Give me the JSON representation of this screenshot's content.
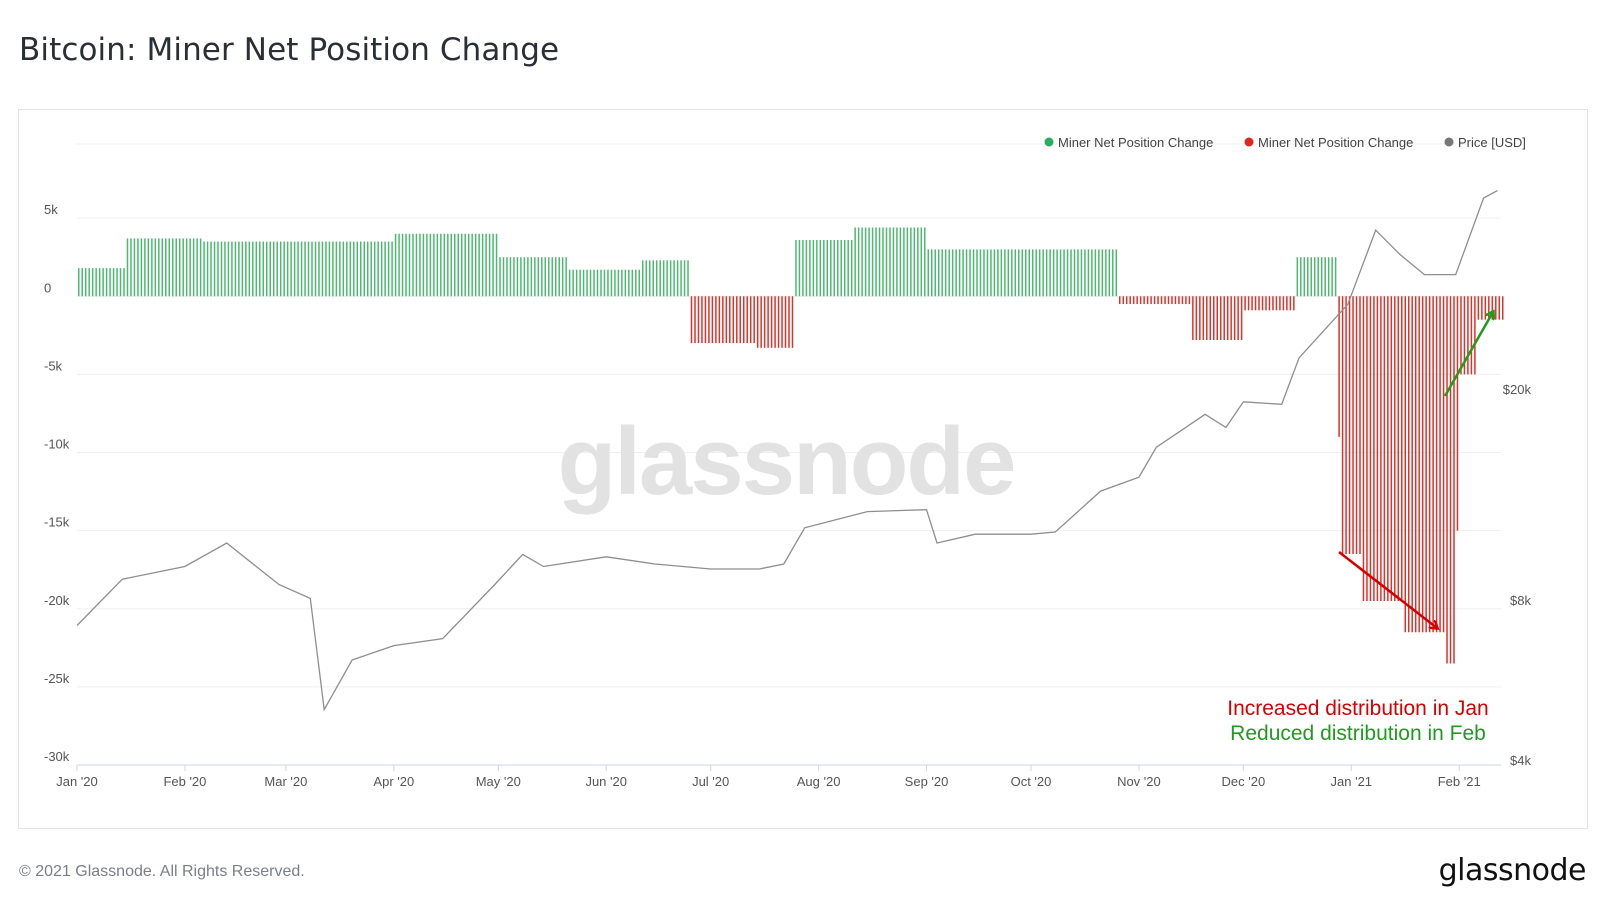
{
  "page": {
    "title": "Bitcoin: Miner Net Position Change",
    "copyright": "© 2021 Glassnode. All Rights Reserved.",
    "logo": "glassnode"
  },
  "chart_data": {
    "type": "bar",
    "title": "Bitcoin: Miner Net Position Change",
    "watermark": "glassnode",
    "legend": {
      "placement": "top-right",
      "entries": [
        {
          "label": "Miner Net Position Change",
          "color": "#27ae60"
        },
        {
          "label": "Miner Net Position Change",
          "color": "#e0271c"
        },
        {
          "label": "Price [USD]",
          "color": "#777777"
        }
      ]
    },
    "colors": {
      "positive": "#4db871",
      "negative": "#d9342b",
      "price": "#8e8e8e",
      "grid": "#efefef"
    },
    "x_range": [
      "2020-01-01",
      "2021-02-13"
    ],
    "x_ticks": [
      {
        "date": "2020-01-01",
        "label": "Jan '20"
      },
      {
        "date": "2020-02-01",
        "label": "Feb '20"
      },
      {
        "date": "2020-03-01",
        "label": "Mar '20"
      },
      {
        "date": "2020-04-01",
        "label": "Apr '20"
      },
      {
        "date": "2020-05-01",
        "label": "May '20"
      },
      {
        "date": "2020-06-01",
        "label": "Jun '20"
      },
      {
        "date": "2020-07-01",
        "label": "Jul '20"
      },
      {
        "date": "2020-08-01",
        "label": "Aug '20"
      },
      {
        "date": "2020-09-01",
        "label": "Sep '20"
      },
      {
        "date": "2020-10-01",
        "label": "Oct '20"
      },
      {
        "date": "2020-11-01",
        "label": "Nov '20"
      },
      {
        "date": "2020-12-01",
        "label": "Dec '20"
      },
      {
        "date": "2021-01-01",
        "label": "Jan '21"
      },
      {
        "date": "2021-02-01",
        "label": "Feb '21"
      }
    ],
    "y_left": {
      "range": [
        -30000,
        10000
      ],
      "ticks": [
        {
          "value": 5000,
          "label": "5k"
        },
        {
          "value": 0,
          "label": "0"
        },
        {
          "value": -5000,
          "label": "-5k"
        },
        {
          "value": -10000,
          "label": "-10k"
        },
        {
          "value": -15000,
          "label": "-15k"
        },
        {
          "value": -20000,
          "label": "-20k"
        },
        {
          "value": -25000,
          "label": "-25k"
        },
        {
          "value": -30000,
          "label": "-30k"
        }
      ]
    },
    "y_right": {
      "scale": "log",
      "ticks": [
        {
          "value": 20000,
          "label": "$20k"
        },
        {
          "value": 8000,
          "label": "$8k"
        },
        {
          "value": 4000,
          "label": "$4k"
        }
      ]
    },
    "net_position_segments": [
      {
        "start": "2020-01-01",
        "end": "2020-01-14",
        "value": 1800
      },
      {
        "start": "2020-01-15",
        "end": "2020-02-05",
        "value": 3700
      },
      {
        "start": "2020-02-06",
        "end": "2020-03-31",
        "value": 3500
      },
      {
        "start": "2020-04-01",
        "end": "2020-04-30",
        "value": 4000
      },
      {
        "start": "2020-05-01",
        "end": "2020-05-20",
        "value": 2500
      },
      {
        "start": "2020-05-21",
        "end": "2020-06-10",
        "value": 1700
      },
      {
        "start": "2020-06-11",
        "end": "2020-06-24",
        "value": 2300
      },
      {
        "start": "2020-06-25",
        "end": "2020-07-13",
        "value": -3000
      },
      {
        "start": "2020-07-14",
        "end": "2020-07-24",
        "value": -3300
      },
      {
        "start": "2020-07-25",
        "end": "2020-08-10",
        "value": 3600
      },
      {
        "start": "2020-08-11",
        "end": "2020-08-31",
        "value": 4400
      },
      {
        "start": "2020-09-01",
        "end": "2020-10-25",
        "value": 3000
      },
      {
        "start": "2020-10-26",
        "end": "2020-11-15",
        "value": -500
      },
      {
        "start": "2020-11-16",
        "end": "2020-11-30",
        "value": -2800
      },
      {
        "start": "2020-12-01",
        "end": "2020-12-15",
        "value": -900
      },
      {
        "start": "2020-12-16",
        "end": "2020-12-27",
        "value": 2500
      },
      {
        "start": "2020-12-28",
        "end": "2020-12-28",
        "value": -9000
      },
      {
        "start": "2020-12-29",
        "end": "2021-01-03",
        "value": -16500
      },
      {
        "start": "2021-01-04",
        "end": "2021-01-15",
        "value": -19500
      },
      {
        "start": "2021-01-16",
        "end": "2021-01-27",
        "value": -21500
      },
      {
        "start": "2021-01-28",
        "end": "2021-01-30",
        "value": -23500
      },
      {
        "start": "2021-01-31",
        "end": "2021-01-31",
        "value": -15000
      },
      {
        "start": "2021-02-01",
        "end": "2021-02-05",
        "value": -5000
      },
      {
        "start": "2021-02-06",
        "end": "2021-02-13",
        "value": -1500
      }
    ],
    "price_usd": [
      {
        "date": "2020-01-01",
        "value": 7200
      },
      {
        "date": "2020-01-14",
        "value": 8800
      },
      {
        "date": "2020-02-01",
        "value": 9300
      },
      {
        "date": "2020-02-13",
        "value": 10300
      },
      {
        "date": "2020-02-28",
        "value": 8600
      },
      {
        "date": "2020-03-08",
        "value": 8100
      },
      {
        "date": "2020-03-12",
        "value": 5000
      },
      {
        "date": "2020-03-20",
        "value": 6200
      },
      {
        "date": "2020-04-01",
        "value": 6600
      },
      {
        "date": "2020-04-15",
        "value": 6800
      },
      {
        "date": "2020-04-30",
        "value": 8600
      },
      {
        "date": "2020-05-08",
        "value": 9800
      },
      {
        "date": "2020-05-14",
        "value": 9300
      },
      {
        "date": "2020-06-01",
        "value": 9700
      },
      {
        "date": "2020-06-15",
        "value": 9400
      },
      {
        "date": "2020-07-01",
        "value": 9200
      },
      {
        "date": "2020-07-15",
        "value": 9200
      },
      {
        "date": "2020-07-22",
        "value": 9400
      },
      {
        "date": "2020-07-28",
        "value": 11000
      },
      {
        "date": "2020-08-15",
        "value": 11800
      },
      {
        "date": "2020-09-01",
        "value": 11900
      },
      {
        "date": "2020-09-04",
        "value": 10300
      },
      {
        "date": "2020-09-15",
        "value": 10700
      },
      {
        "date": "2020-10-01",
        "value": 10700
      },
      {
        "date": "2020-10-08",
        "value": 10800
      },
      {
        "date": "2020-10-21",
        "value": 12900
      },
      {
        "date": "2020-11-01",
        "value": 13700
      },
      {
        "date": "2020-11-06",
        "value": 15600
      },
      {
        "date": "2020-11-20",
        "value": 18000
      },
      {
        "date": "2020-11-26",
        "value": 17000
      },
      {
        "date": "2020-12-01",
        "value": 19000
      },
      {
        "date": "2020-12-12",
        "value": 18800
      },
      {
        "date": "2020-12-17",
        "value": 23000
      },
      {
        "date": "2020-12-31",
        "value": 29000
      },
      {
        "date": "2021-01-08",
        "value": 40000
      },
      {
        "date": "2021-01-15",
        "value": 36000
      },
      {
        "date": "2021-01-22",
        "value": 33000
      },
      {
        "date": "2021-01-31",
        "value": 33000
      },
      {
        "date": "2021-02-08",
        "value": 46000
      },
      {
        "date": "2021-02-12",
        "value": 47500
      }
    ],
    "annotations": [
      {
        "text": "Increased distribution in Jan",
        "color": "#d50000"
      },
      {
        "text": "Reduced distribution in Feb",
        "color": "#1f9b1f"
      }
    ]
  }
}
